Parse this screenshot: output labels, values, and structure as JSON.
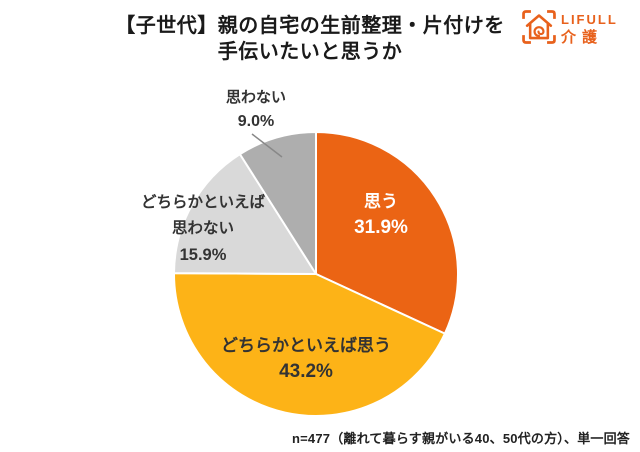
{
  "title": {
    "line1": "【子世代】親の自宅の生前整理・片付けを",
    "line2": "手伝いたいと思うか"
  },
  "logo": {
    "brand": "LIFULL",
    "service": "介護",
    "color": "#E8611C"
  },
  "chart_data": {
    "type": "pie",
    "title": "【子世代】親の自宅の生前整理・片付けを手伝いたいと思うか",
    "unit": "%",
    "start_angle_deg": 0,
    "direction": "clockwise",
    "legend_position": "labels-on-chart",
    "slices": [
      {
        "label": "思う",
        "value": 31.9,
        "pct_label": "31.9%",
        "color": "#EB6414",
        "label_color": "#FFFFFF",
        "label_lines": [
          "思う"
        ]
      },
      {
        "label": "どちらかといえば思う",
        "value": 43.2,
        "pct_label": "43.2%",
        "color": "#FDB317",
        "label_color": "#333333",
        "label_lines": [
          "どちらかといえば思う"
        ]
      },
      {
        "label": "どちらかといえば思わない",
        "value": 15.9,
        "pct_label": "15.9%",
        "color": "#D9D9D9",
        "label_color": "#333333",
        "label_lines": [
          "どちらかといえば",
          "思わない"
        ]
      },
      {
        "label": "思わない",
        "value": 9.0,
        "pct_label": "9.0%",
        "color": "#AEAEAE",
        "label_color": "#333333",
        "label_lines": [
          "思わない"
        ]
      }
    ],
    "note": "n=477（離れて暮らす親がいる40、50代の方）、単一回答"
  }
}
